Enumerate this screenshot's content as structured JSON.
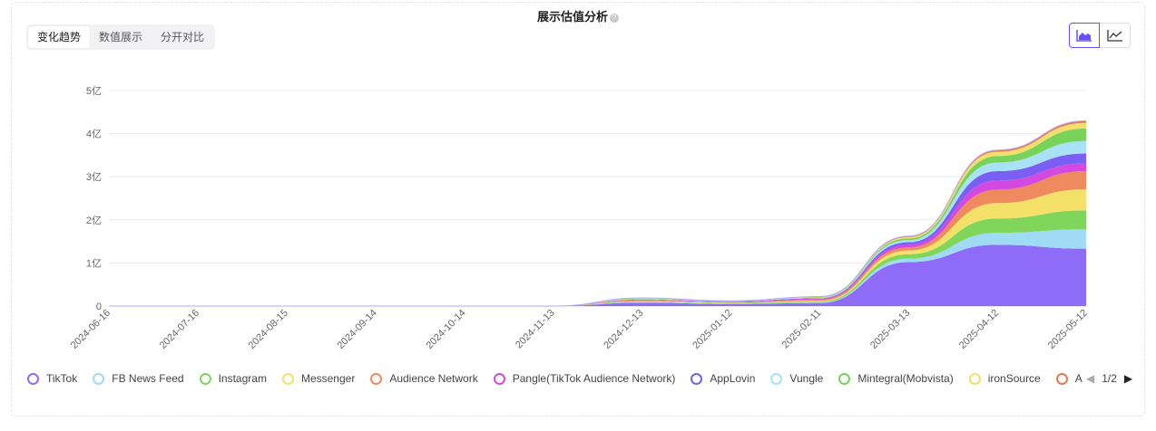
{
  "title": "展示估值分析",
  "help_icon": "question-icon",
  "tabs": [
    {
      "label": "变化趋势",
      "active": true
    },
    {
      "label": "数值展示",
      "active": false
    },
    {
      "label": "分开对比",
      "active": false
    }
  ],
  "chart_type_toggle": [
    {
      "icon": "area-chart-icon",
      "active": true
    },
    {
      "icon": "line-chart-icon",
      "active": false
    }
  ],
  "pager": {
    "text": "1/2"
  },
  "chart_data": {
    "type": "area",
    "stacked": true,
    "x": [
      "2024-06-16",
      "2024-07-16",
      "2024-08-15",
      "2024-09-14",
      "2024-10-14",
      "2024-11-13",
      "2024-12-13",
      "2025-01-12",
      "2025-02-11",
      "2025-03-13",
      "2025-04-12",
      "2025-05-12"
    ],
    "y_ticks": [
      {
        "value": 0,
        "label": "0"
      },
      {
        "value": 1,
        "label": "1亿"
      },
      {
        "value": 2,
        "label": "2亿"
      },
      {
        "value": 3,
        "label": "3亿"
      },
      {
        "value": 4,
        "label": "4亿"
      },
      {
        "value": 5,
        "label": "5亿"
      }
    ],
    "ylim": [
      0,
      5
    ],
    "y_unit": "亿",
    "grid": true,
    "legend_position": "bottom",
    "series": [
      {
        "name": "TikTok",
        "color": "#8e6cf7",
        "values": [
          0,
          0,
          0,
          0,
          0,
          0,
          0.08,
          0.05,
          0.07,
          1.02,
          1.42,
          1.33
        ]
      },
      {
        "name": "FB News Feed",
        "color": "#9fdbf4",
        "values": [
          0,
          0,
          0,
          0,
          0,
          0,
          0.01,
          0.01,
          0.01,
          0.08,
          0.28,
          0.45
        ]
      },
      {
        "name": "Instagram",
        "color": "#7fd65b",
        "values": [
          0,
          0,
          0,
          0,
          0,
          0,
          0.01,
          0.01,
          0.02,
          0.1,
          0.33,
          0.44
        ]
      },
      {
        "name": "Messenger",
        "color": "#f4e16a",
        "values": [
          0,
          0,
          0,
          0,
          0,
          0,
          0.01,
          0.01,
          0.02,
          0.09,
          0.36,
          0.49
        ]
      },
      {
        "name": "Audience Network",
        "color": "#ee8a5d",
        "values": [
          0,
          0,
          0,
          0,
          0,
          0,
          0.02,
          0.01,
          0.03,
          0.07,
          0.31,
          0.42
        ]
      },
      {
        "name": "Pangle(TikTok Audience Network)",
        "color": "#d44ae0",
        "values": [
          0,
          0,
          0,
          0,
          0,
          0,
          0.01,
          0.01,
          0.02,
          0.06,
          0.21,
          0.18
        ]
      },
      {
        "name": "AppLovin",
        "color": "#7b5ff2",
        "values": [
          0,
          0,
          0,
          0,
          0,
          0,
          0.01,
          0.01,
          0.01,
          0.06,
          0.22,
          0.23
        ]
      },
      {
        "name": "Vungle",
        "color": "#a9e2f6",
        "values": [
          0,
          0,
          0,
          0,
          0,
          0,
          0.01,
          0.01,
          0.01,
          0.05,
          0.2,
          0.29
        ]
      },
      {
        "name": "Mintegral(Mobvista)",
        "color": "#78d35a",
        "values": [
          0,
          0,
          0,
          0,
          0,
          0,
          0.01,
          0.0,
          0.01,
          0.04,
          0.15,
          0.29
        ]
      },
      {
        "name": "ironSource",
        "color": "#f4df6e",
        "values": [
          0,
          0,
          0,
          0,
          0,
          0,
          0.01,
          0.0,
          0.01,
          0.03,
          0.1,
          0.13
        ]
      },
      {
        "name": "A",
        "color": "#e87a4e",
        "values": [
          0,
          0,
          0,
          0,
          0,
          0,
          0.01,
          0.0,
          0.01,
          0.02,
          0.04,
          0.05
        ]
      }
    ]
  }
}
